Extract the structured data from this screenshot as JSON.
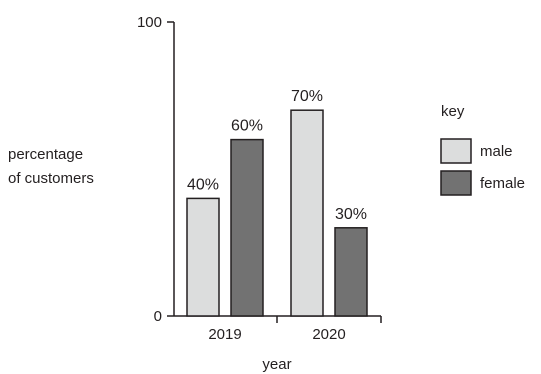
{
  "chart_data": {
    "type": "bar",
    "categories": [
      "2019",
      "2020"
    ],
    "series": [
      {
        "name": "male",
        "values": [
          40,
          70
        ],
        "color": "#dcdddd"
      },
      {
        "name": "female",
        "values": [
          60,
          30
        ],
        "color": "#727272"
      }
    ],
    "value_labels": [
      [
        "40%",
        "70%"
      ],
      [
        "60%",
        "30%"
      ]
    ],
    "ylim": [
      0,
      100
    ],
    "yticks": [
      "0",
      "100"
    ],
    "ylabel_lines": [
      "percentage",
      "of customers"
    ],
    "xlabel": "year",
    "legend": {
      "title": "key",
      "placement": "right"
    },
    "grid": false
  }
}
